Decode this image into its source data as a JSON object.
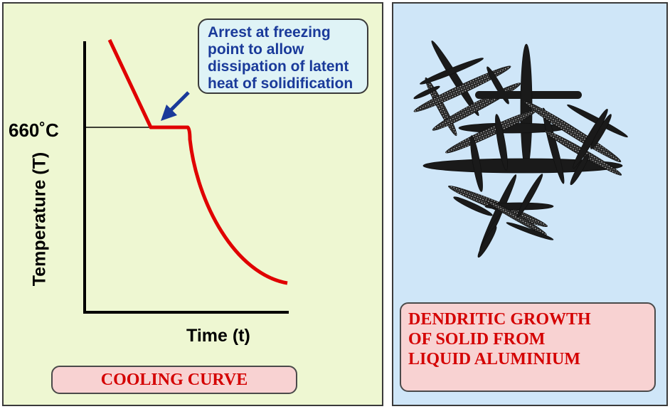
{
  "left_panel": {
    "callout_lines": [
      "Arrest at freezing",
      "point to allow",
      "dissipation of latent",
      "heat of solidification"
    ],
    "temp_label": "660˚C",
    "y_axis_label": "Temperature (T)",
    "x_axis_label": "Time (t)",
    "caption": "COOLING CURVE"
  },
  "right_panel": {
    "caption_lines": [
      "DENDRITIC GROWTH",
      "OF SOLID FROM",
      "LIQUID ALUMINIUM"
    ]
  },
  "colors": {
    "curve": "#e00000",
    "arrow": "#1a3a9a",
    "left_background": "#eef7d2",
    "right_background": "#cfe6f8",
    "caption_background": "#f8d2d2",
    "caption_text": "#d40000"
  }
}
